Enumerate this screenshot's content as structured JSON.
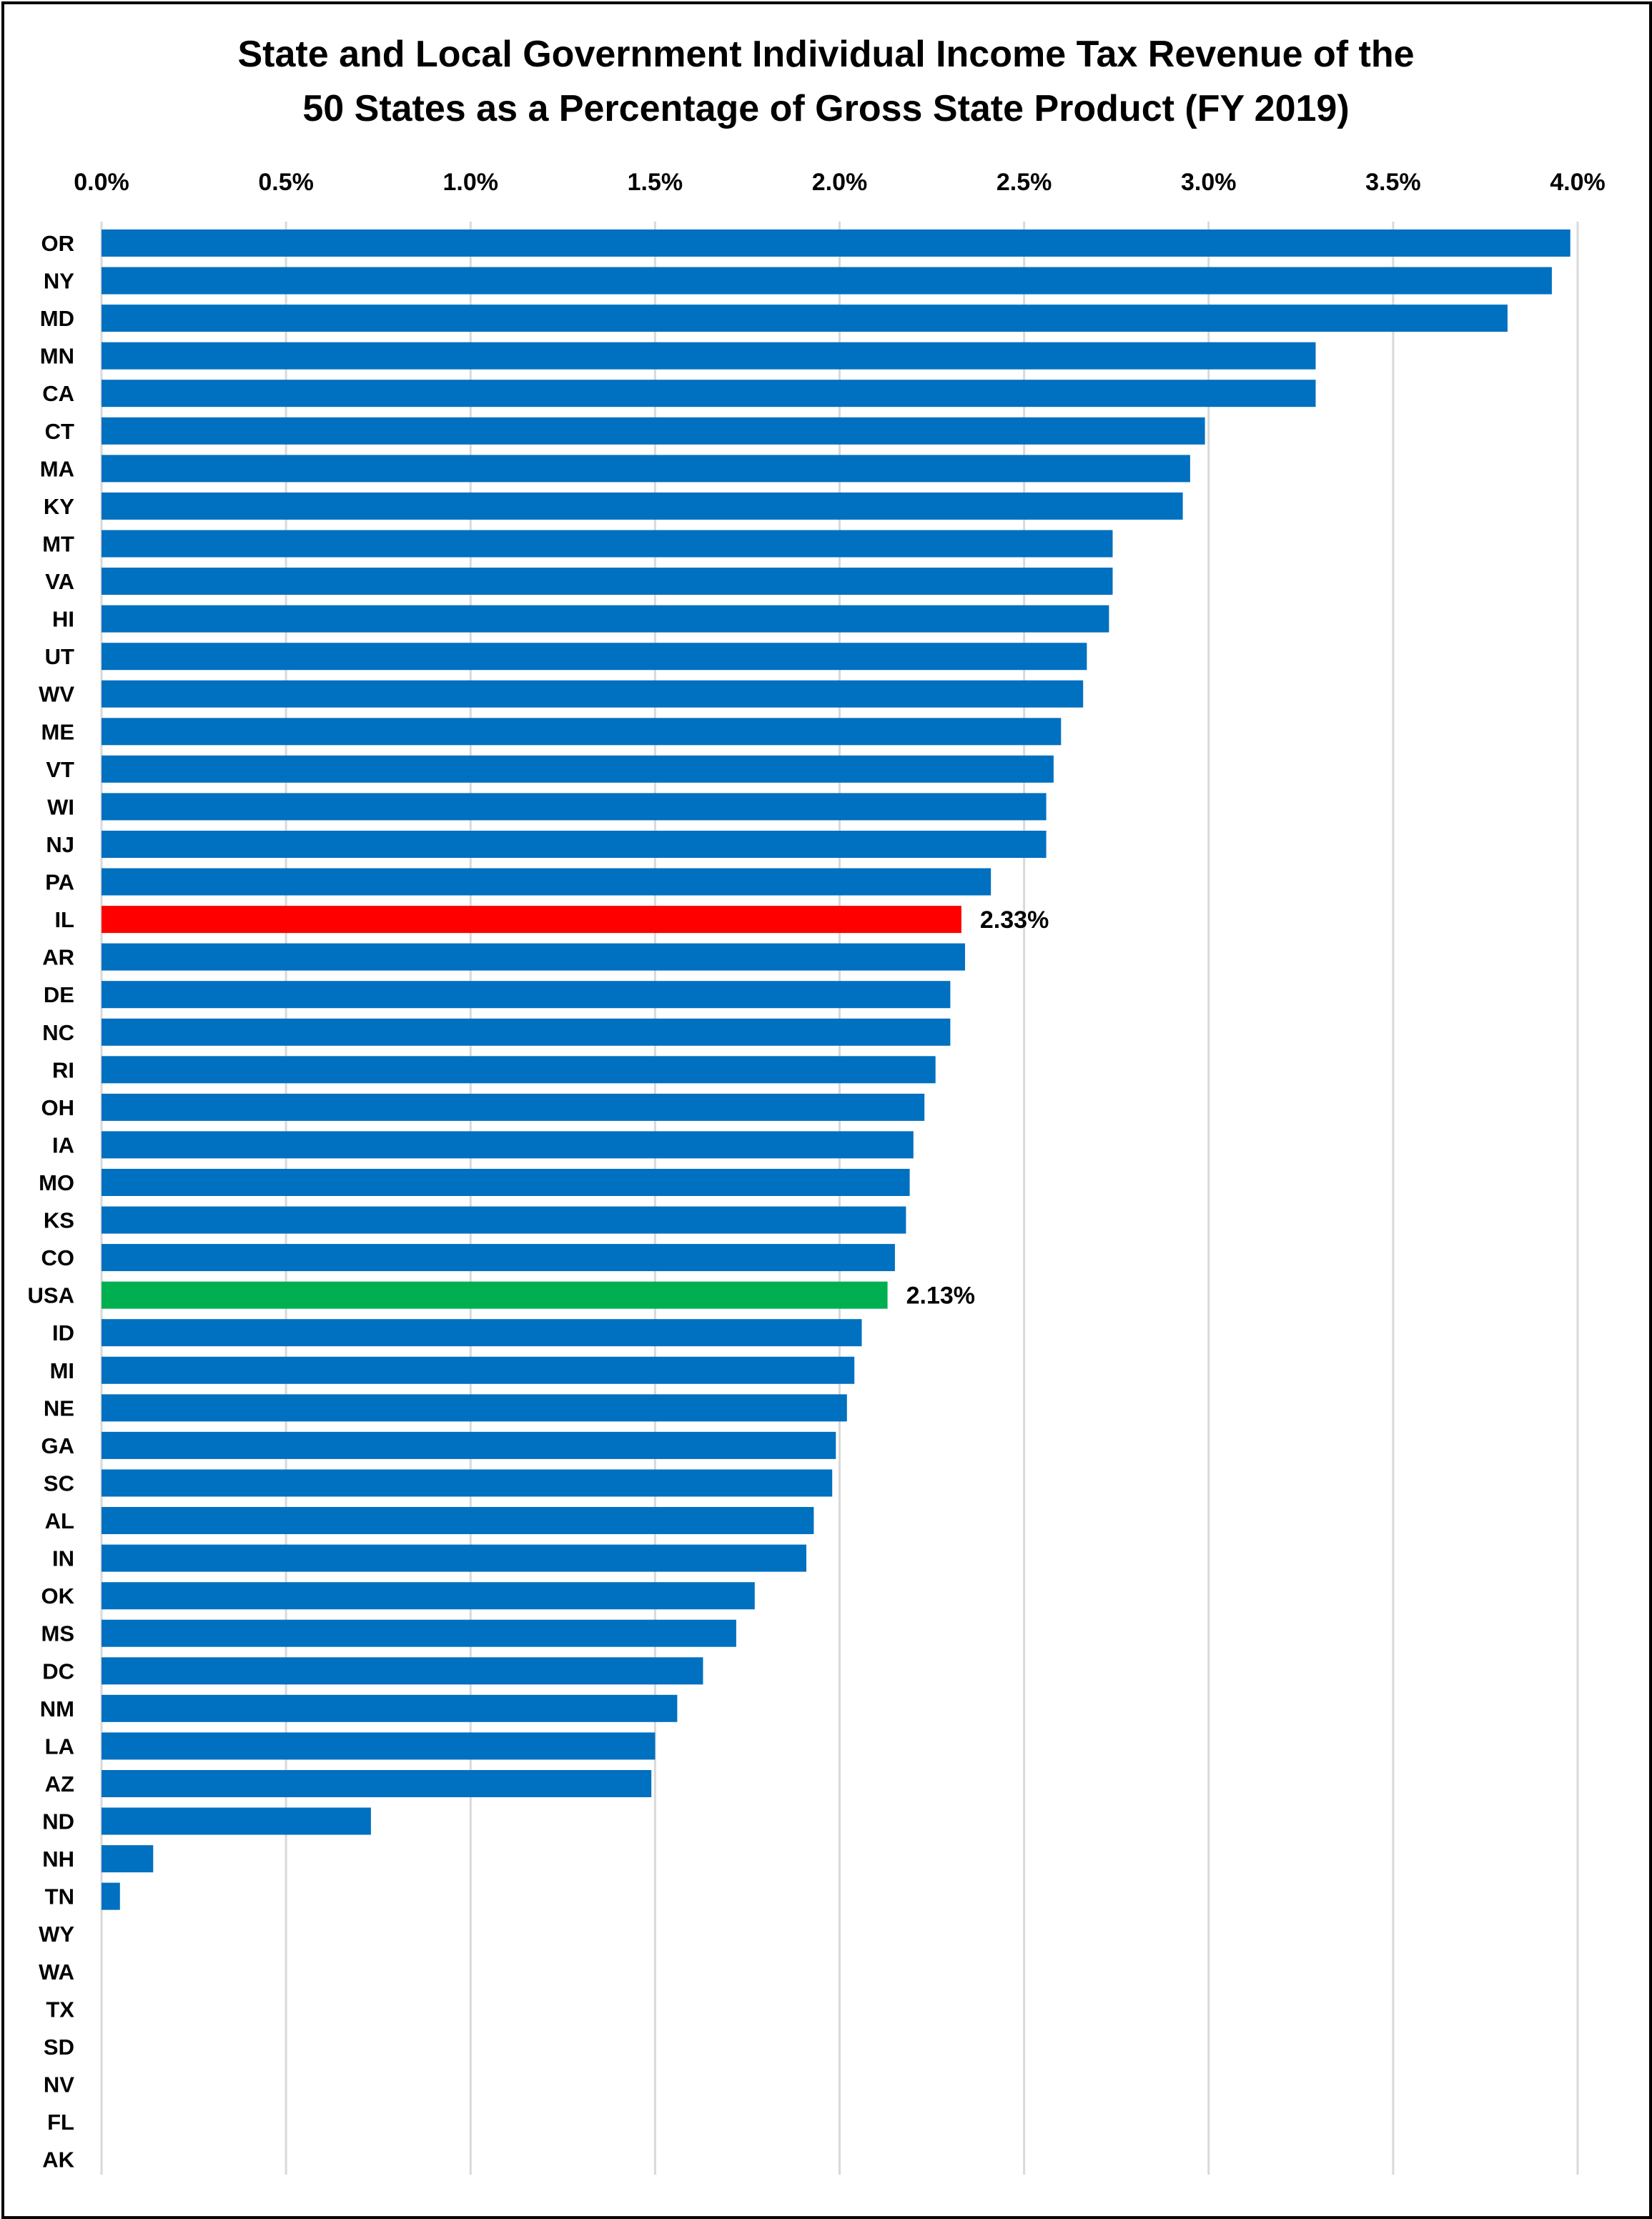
{
  "chart_data": {
    "type": "bar",
    "orientation": "horizontal",
    "title_lines": [
      "State and Local Government Individual Income Tax Revenue of the",
      "50 States as a Percentage of Gross State Product (FY 2019)"
    ],
    "xlabel": "",
    "ylabel": "",
    "xlim": [
      0,
      4.0
    ],
    "x_ticks": [
      "0.0%",
      "0.5%",
      "1.0%",
      "1.5%",
      "2.0%",
      "2.5%",
      "3.0%",
      "3.5%",
      "4.0%"
    ],
    "x_axis_position": "top",
    "grid": "vertical",
    "legend": "none",
    "unit": "%",
    "categories": [
      "OR",
      "NY",
      "MD",
      "MN",
      "CA",
      "CT",
      "MA",
      "KY",
      "MT",
      "VA",
      "HI",
      "UT",
      "WV",
      "ME",
      "VT",
      "WI",
      "NJ",
      "PA",
      "IL",
      "AR",
      "DE",
      "NC",
      "RI",
      "OH",
      "IA",
      "MO",
      "KS",
      "CO",
      "USA",
      "ID",
      "MI",
      "NE",
      "GA",
      "SC",
      "AL",
      "IN",
      "OK",
      "MS",
      "DC",
      "NM",
      "LA",
      "AZ",
      "ND",
      "NH",
      "TN",
      "WY",
      "WA",
      "TX",
      "SD",
      "NV",
      "FL",
      "AK"
    ],
    "values": [
      3.98,
      3.93,
      3.81,
      3.29,
      3.29,
      2.99,
      2.95,
      2.93,
      2.74,
      2.74,
      2.73,
      2.67,
      2.66,
      2.6,
      2.58,
      2.56,
      2.56,
      2.41,
      2.33,
      2.34,
      2.3,
      2.3,
      2.26,
      2.23,
      2.2,
      2.19,
      2.18,
      2.15,
      2.13,
      2.06,
      2.04,
      2.02,
      1.99,
      1.98,
      1.93,
      1.91,
      1.77,
      1.72,
      1.63,
      1.56,
      1.5,
      1.49,
      0.73,
      0.14,
      0.05,
      0,
      0,
      0,
      0,
      0,
      0,
      0
    ],
    "highlights": {
      "IL": {
        "color": "#ff0000",
        "label": "2.33%"
      },
      "USA": {
        "color": "#00b050",
        "label": "2.13%"
      }
    },
    "colors": {
      "default_bar": "#0070c0",
      "grid": "#d9d9d9"
    }
  }
}
